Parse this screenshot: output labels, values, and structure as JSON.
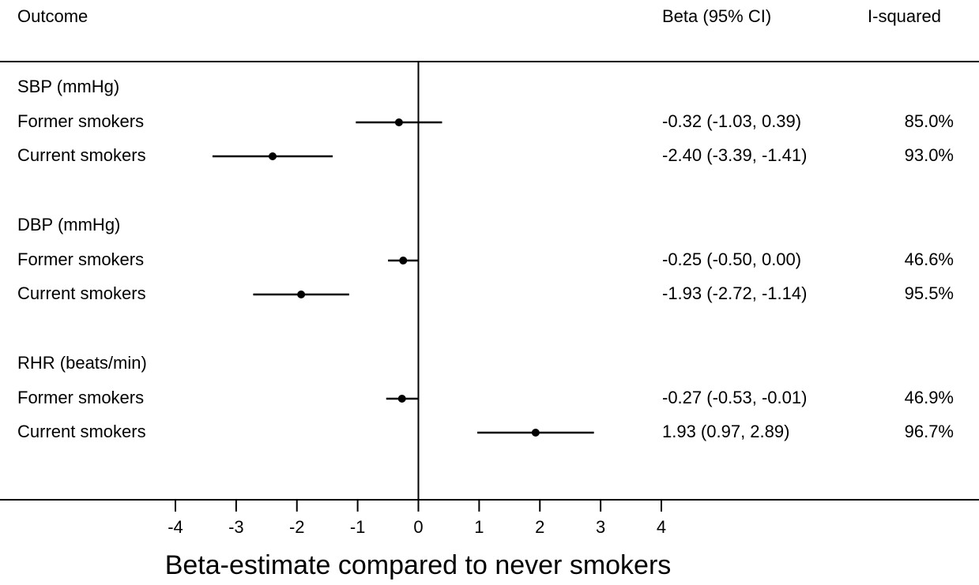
{
  "chart_data": {
    "type": "forest",
    "headers": {
      "outcome": "Outcome",
      "beta": "Beta (95% CI)",
      "i_squared": "I-squared"
    },
    "xlabel": "Beta-estimate compared to never smokers",
    "xlim": [
      -4,
      4
    ],
    "xticks": [
      -4,
      -3,
      -2,
      -1,
      0,
      1,
      2,
      3,
      4
    ],
    "color": "#000000",
    "groups": [
      {
        "name": "SBP (mmHg)",
        "categories": [
          "Former smokers",
          "Current smokers"
        ],
        "estimates": [
          -0.32,
          -2.4
        ],
        "lower": [
          -1.03,
          -3.39
        ],
        "upper": [
          0.39,
          -1.41
        ],
        "value_labels": [
          "-0.32 (-1.03, 0.39)",
          "-2.40 (-3.39, -1.41)"
        ],
        "i_squared": [
          85.0,
          93.0
        ],
        "i_squared_labels": [
          "85.0%",
          "93.0%"
        ]
      },
      {
        "name": "DBP (mmHg)",
        "categories": [
          "Former smokers",
          "Current smokers"
        ],
        "estimates": [
          -0.25,
          -1.93
        ],
        "lower": [
          -0.5,
          -2.72
        ],
        "upper": [
          0.0,
          -1.14
        ],
        "value_labels": [
          "-0.25 (-0.50, 0.00)",
          "-1.93 (-2.72, -1.14)"
        ],
        "i_squared": [
          46.6,
          95.5
        ],
        "i_squared_labels": [
          "46.6%",
          "95.5%"
        ]
      },
      {
        "name": "RHR (beats/min)",
        "categories": [
          "Former smokers",
          "Current smokers"
        ],
        "estimates": [
          -0.27,
          1.93
        ],
        "lower": [
          -0.53,
          0.97
        ],
        "upper": [
          -0.01,
          2.89
        ],
        "value_labels": [
          "-0.27 (-0.53, -0.01)",
          "1.93 (0.97, 2.89)"
        ],
        "i_squared": [
          46.9,
          96.7
        ],
        "i_squared_labels": [
          "46.9%",
          "96.7%"
        ]
      }
    ]
  }
}
